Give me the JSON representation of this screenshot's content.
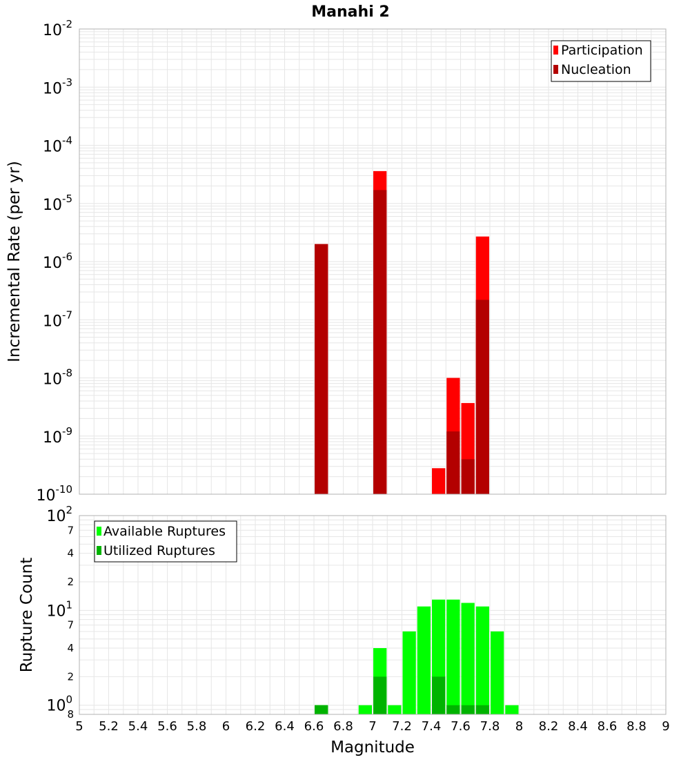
{
  "title": "Manahi 2",
  "colors": {
    "participation": "#ff0000",
    "nucleation": "#b30000",
    "available": "#00ff00",
    "utilized": "#00b300",
    "grid": "#e6e6e6",
    "frame": "#b0b0b0"
  },
  "chart_data": [
    {
      "type": "bar",
      "title": "Manahi 2",
      "xlabel": "Magnitude",
      "ylabel": "Incremental Rate (per yr)",
      "yscale": "log",
      "ylim": [
        1e-10,
        0.01
      ],
      "xlim": [
        5,
        9
      ],
      "bin_width": 0.1,
      "grid": true,
      "legend_position": "top-right",
      "y_tick_labels": [
        {
          "base": "10",
          "exp": "-10"
        },
        {
          "base": "10",
          "exp": "-9"
        },
        {
          "base": "10",
          "exp": "-8"
        },
        {
          "base": "10",
          "exp": "-7"
        },
        {
          "base": "10",
          "exp": "-6"
        },
        {
          "base": "10",
          "exp": "-5"
        },
        {
          "base": "10",
          "exp": "-4"
        },
        {
          "base": "10",
          "exp": "-3"
        },
        {
          "base": "10",
          "exp": "-2"
        }
      ],
      "series": [
        {
          "name": "Participation",
          "x": [
            6.65,
            7.05,
            7.45,
            7.55,
            7.65,
            7.75
          ],
          "values": [
            2e-06,
            3.6e-05,
            2.8e-10,
            1e-08,
            3.7e-09,
            2.7e-06
          ]
        },
        {
          "name": "Nucleation",
          "x": [
            6.65,
            7.05,
            7.55,
            7.65,
            7.75
          ],
          "values": [
            2e-06,
            1.7e-05,
            1.2e-09,
            4e-10,
            2.2e-07
          ]
        }
      ]
    },
    {
      "type": "bar",
      "xlabel": "Magnitude",
      "ylabel": "Rupture Count",
      "yscale": "log",
      "ylim": [
        0.8,
        100
      ],
      "xlim": [
        5,
        9
      ],
      "bin_width": 0.1,
      "grid": true,
      "legend_position": "top-left",
      "x_tick_labels": [
        "5",
        "5.2",
        "5.4",
        "5.6",
        "5.8",
        "6",
        "6.2",
        "6.4",
        "6.6",
        "6.8",
        "7",
        "7.2",
        "7.4",
        "7.6",
        "7.8",
        "8",
        "8.2",
        "8.4",
        "8.6",
        "8.8",
        "9"
      ],
      "y_tick_labels": [
        {
          "base": "8",
          "exp": ""
        },
        {
          "base": "10",
          "exp": "0"
        },
        {
          "base": "2",
          "exp": ""
        },
        {
          "base": "4",
          "exp": ""
        },
        {
          "base": "7",
          "exp": ""
        },
        {
          "base": "10",
          "exp": "1"
        },
        {
          "base": "2",
          "exp": ""
        },
        {
          "base": "4",
          "exp": ""
        },
        {
          "base": "7",
          "exp": ""
        },
        {
          "base": "10",
          "exp": "2"
        }
      ],
      "series": [
        {
          "name": "Available Ruptures",
          "x": [
            6.65,
            6.95,
            7.05,
            7.15,
            7.25,
            7.35,
            7.45,
            7.55,
            7.65,
            7.75,
            7.85,
            7.95
          ],
          "values": [
            1,
            1,
            4,
            1,
            6,
            11,
            13,
            13,
            12,
            11,
            6,
            1
          ]
        },
        {
          "name": "Utilized Ruptures",
          "x": [
            6.65,
            7.05,
            7.45,
            7.55,
            7.65,
            7.75
          ],
          "values": [
            1,
            2,
            2,
            1,
            1,
            1
          ]
        }
      ]
    }
  ]
}
